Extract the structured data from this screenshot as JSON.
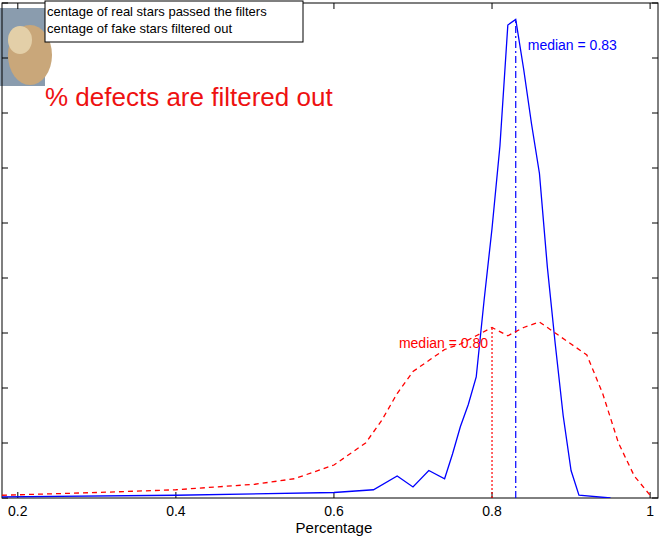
{
  "chart_data": {
    "type": "line",
    "annotation": "% defects are filtered out",
    "x_label": "Percentage",
    "xlim": [
      0.18,
      1.01
    ],
    "xticks": [
      0.2,
      0.4,
      0.6,
      0.8,
      1
    ],
    "ylim": [
      0,
      9
    ],
    "yticks": [
      0,
      1,
      2,
      3,
      4,
      5,
      6,
      7,
      8,
      9
    ],
    "tick_labels": "x",
    "legend": "top-left",
    "series": [
      {
        "name": "centage of real stars passed the filters",
        "color": "#0000ff",
        "line_style": "solid",
        "median": 0.83,
        "median_label": "median = 0.83",
        "x": [
          0.18,
          0.4,
          0.6,
          0.65,
          0.68,
          0.7,
          0.72,
          0.74,
          0.75,
          0.76,
          0.77,
          0.78,
          0.79,
          0.8,
          0.81,
          0.82,
          0.83,
          0.84,
          0.85,
          0.86,
          0.87,
          0.88,
          0.89,
          0.9,
          0.91,
          0.95
        ],
        "values": [
          0.02,
          0.05,
          0.1,
          0.15,
          0.4,
          0.2,
          0.5,
          0.35,
          0.8,
          1.3,
          1.7,
          2.2,
          3.6,
          4.9,
          6.4,
          8.6,
          8.7,
          7.8,
          6.8,
          5.9,
          4.2,
          2.8,
          1.5,
          0.5,
          0.05,
          0
        ]
      },
      {
        "name": "centage of fake stars filtered out",
        "color": "#ff0000",
        "line_style": "dashed",
        "median": 0.8,
        "median_label": "median = 0.80",
        "x": [
          0.18,
          0.3,
          0.4,
          0.5,
          0.55,
          0.6,
          0.62,
          0.64,
          0.66,
          0.68,
          0.7,
          0.72,
          0.74,
          0.76,
          0.78,
          0.8,
          0.82,
          0.84,
          0.86,
          0.88,
          0.9,
          0.92,
          0.94,
          0.96,
          0.98,
          1.0
        ],
        "values": [
          0.05,
          0.1,
          0.15,
          0.25,
          0.35,
          0.6,
          0.8,
          1.0,
          1.4,
          1.9,
          2.3,
          2.5,
          2.7,
          2.8,
          2.95,
          3.1,
          2.95,
          3.1,
          3.2,
          3.0,
          2.8,
          2.6,
          1.9,
          1.0,
          0.4,
          0.05
        ]
      }
    ]
  }
}
